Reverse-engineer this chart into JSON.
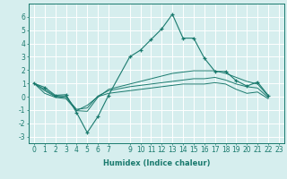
{
  "title": "",
  "xlabel": "Humidex (Indice chaleur)",
  "ylabel": "",
  "background_color": "#d6eeee",
  "line_color": "#1a7a6e",
  "grid_color": "#ffffff",
  "xlim": [
    -0.5,
    23.5
  ],
  "ylim": [
    -3.5,
    7.0
  ],
  "xticks": [
    0,
    1,
    2,
    3,
    4,
    5,
    6,
    7,
    9,
    10,
    11,
    12,
    13,
    14,
    15,
    16,
    17,
    18,
    19,
    20,
    21,
    22,
    23
  ],
  "yticks": [
    -3,
    -2,
    -1,
    0,
    1,
    2,
    3,
    4,
    5,
    6
  ],
  "series": [
    [
      1.0,
      0.7,
      0.1,
      0.15,
      -1.2,
      -2.7,
      -1.5,
      0.1,
      3.0,
      3.5,
      4.3,
      5.1,
      6.2,
      4.4,
      4.4,
      2.9,
      1.9,
      1.9,
      1.2,
      0.8,
      1.1,
      0.1
    ],
    [
      1.0,
      0.55,
      0.05,
      0.05,
      -1.05,
      -1.1,
      -0.05,
      0.55,
      0.95,
      1.15,
      1.35,
      1.55,
      1.75,
      1.85,
      1.95,
      1.95,
      1.95,
      1.75,
      1.45,
      1.15,
      0.95,
      0.05
    ],
    [
      1.0,
      0.45,
      0.0,
      -0.05,
      -0.95,
      -0.85,
      0.05,
      0.45,
      0.75,
      0.85,
      0.95,
      1.05,
      1.15,
      1.25,
      1.35,
      1.35,
      1.45,
      1.25,
      0.95,
      0.75,
      0.65,
      -0.05
    ],
    [
      1.0,
      0.25,
      -0.05,
      -0.15,
      -1.05,
      -0.65,
      0.0,
      0.25,
      0.45,
      0.55,
      0.65,
      0.75,
      0.85,
      0.95,
      0.95,
      0.95,
      1.05,
      0.95,
      0.55,
      0.25,
      0.35,
      -0.15
    ]
  ],
  "x_data": [
    0,
    1,
    2,
    3,
    4,
    5,
    6,
    7,
    9,
    10,
    11,
    12,
    13,
    14,
    15,
    16,
    17,
    18,
    19,
    20,
    21,
    22
  ],
  "xlabel_fontsize": 6.0,
  "tick_fontsize": 5.5
}
